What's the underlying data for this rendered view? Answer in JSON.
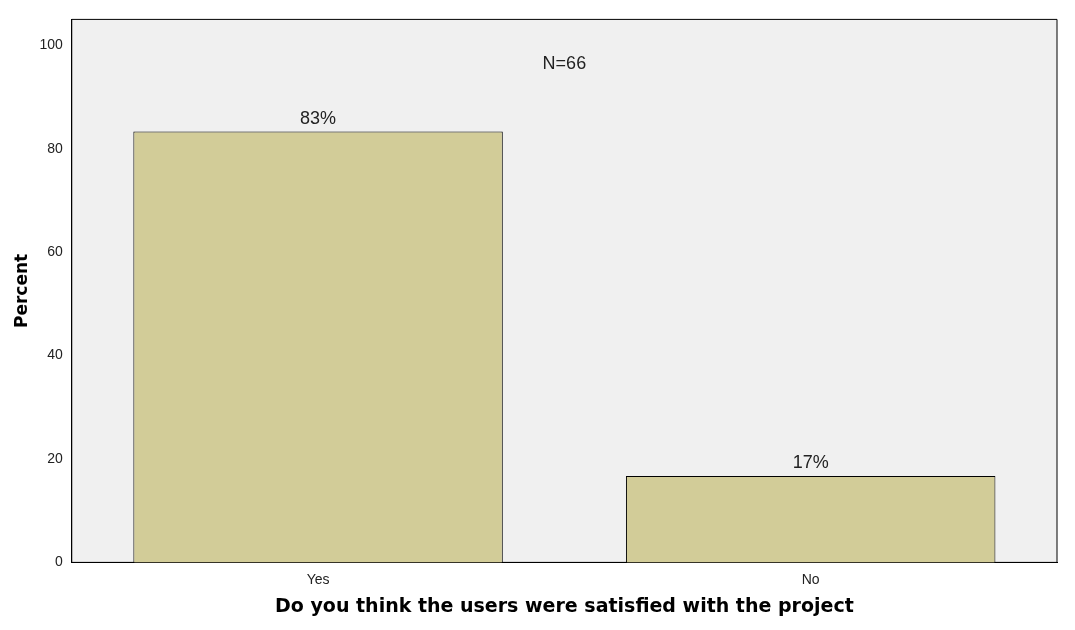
{
  "chart_data": {
    "type": "bar",
    "xlabel": "Do you think the users were satisfied with the project",
    "ylabel": "Percent",
    "categories": [
      "Yes",
      "No"
    ],
    "values": [
      83.3,
      16.7
    ],
    "value_labels": [
      "83%",
      "17%"
    ],
    "color": "#d2cc98",
    "ylim": [
      0,
      105
    ],
    "yticks": [
      0,
      20,
      40,
      60,
      80,
      100
    ],
    "grid": false,
    "legend": false,
    "annotations": [
      "N=66"
    ]
  }
}
